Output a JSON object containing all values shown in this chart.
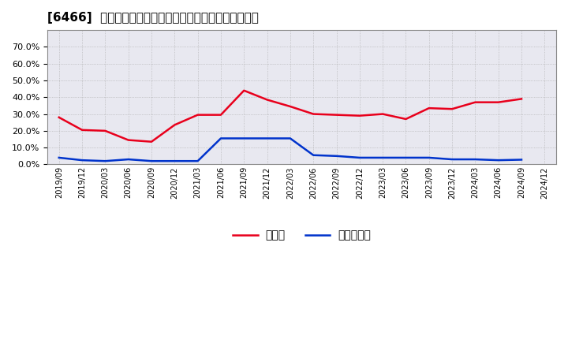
{
  "title": "[6466]  現預金、有利子負債の総資産に対する比率の推移",
  "x_labels": [
    "2019/09",
    "2019/12",
    "2020/03",
    "2020/06",
    "2020/09",
    "2020/12",
    "2021/03",
    "2021/06",
    "2021/09",
    "2021/12",
    "2022/03",
    "2022/06",
    "2022/09",
    "2022/12",
    "2023/03",
    "2023/06",
    "2023/09",
    "2023/12",
    "2024/03",
    "2024/06",
    "2024/09",
    "2024/12"
  ],
  "cash_values": [
    0.28,
    0.205,
    0.2,
    0.145,
    0.135,
    0.235,
    0.295,
    0.295,
    0.44,
    0.385,
    0.345,
    0.3,
    0.295,
    0.29,
    0.3,
    0.27,
    0.335,
    0.33,
    0.37,
    0.37,
    0.39,
    null
  ],
  "debt_values": [
    0.04,
    0.025,
    0.02,
    0.03,
    0.02,
    0.02,
    0.02,
    0.155,
    0.155,
    0.155,
    0.155,
    0.055,
    0.05,
    0.04,
    0.04,
    0.04,
    0.04,
    0.03,
    0.03,
    0.025,
    0.028,
    null
  ],
  "cash_color": "#e8001c",
  "debt_color": "#0033cc",
  "background_color": "#ffffff",
  "plot_bg_color": "#e8e8f0",
  "grid_color": "#ffffff",
  "ylim": [
    0.0,
    0.8
  ],
  "yticks": [
    0.0,
    0.1,
    0.2,
    0.3,
    0.4,
    0.5,
    0.6,
    0.7
  ],
  "legend_cash": "現預金",
  "legend_debt": "有利子負債"
}
